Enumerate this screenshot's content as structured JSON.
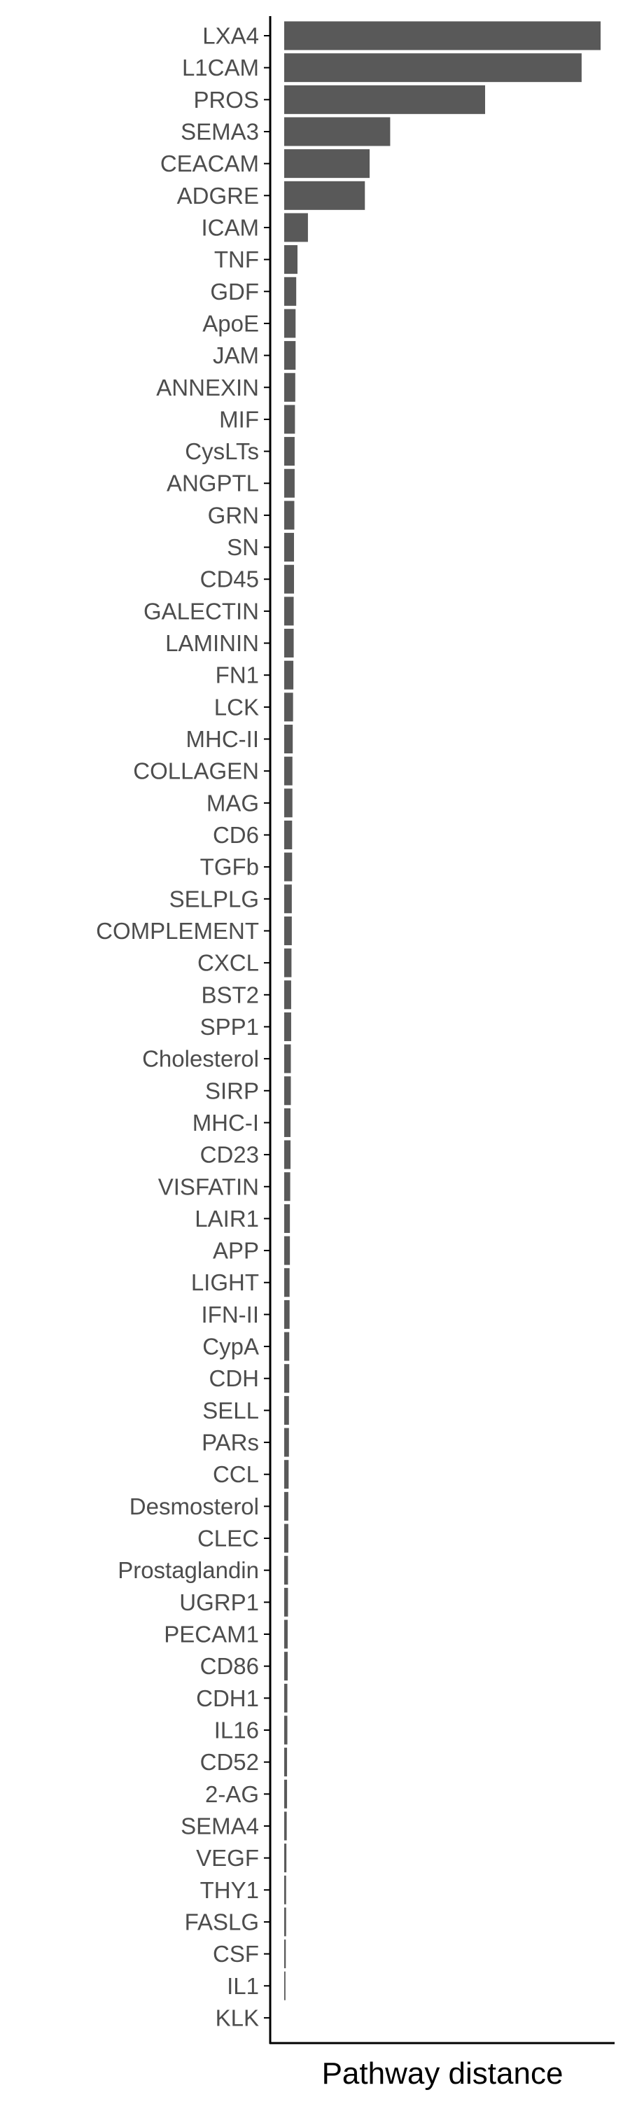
{
  "chart_data": {
    "type": "bar",
    "orientation": "horizontal",
    "xlabel": "Pathway distance",
    "ylabel": "",
    "categories": [
      "LXA4",
      "L1CAM",
      "PROS",
      "SEMA3",
      "CEACAM",
      "ADGRE",
      "ICAM",
      "TNF",
      "GDF",
      "ApoE",
      "JAM",
      "ANNEXIN",
      "MIF",
      "CysLTs",
      "ANGPTL",
      "GRN",
      "SN",
      "CD45",
      "GALECTIN",
      "LAMININ",
      "FN1",
      "LCK",
      "MHC-II",
      "COLLAGEN",
      "MAG",
      "CD6",
      "TGFb",
      "SELPLG",
      "COMPLEMENT",
      "CXCL",
      "BST2",
      "SPP1",
      "Cholesterol",
      "SIRP",
      "MHC-I",
      "CD23",
      "VISFATIN",
      "LAIR1",
      "APP",
      "LIGHT",
      "IFN-II",
      "CypA",
      "CDH",
      "SELL",
      "PARs",
      "CCL",
      "Desmosterol",
      "CLEC",
      "Prostaglandin",
      "UGRP1",
      "PECAM1",
      "CD86",
      "CDH1",
      "IL16",
      "CD52",
      "2-AG",
      "SEMA4",
      "VEGF",
      "THY1",
      "FASLG",
      "CSF",
      "IL1",
      "KLK"
    ],
    "values": [
      1.0,
      0.94,
      0.635,
      0.335,
      0.27,
      0.255,
      0.075,
      0.042,
      0.038,
      0.036,
      0.036,
      0.035,
      0.034,
      0.033,
      0.033,
      0.032,
      0.031,
      0.031,
      0.03,
      0.03,
      0.029,
      0.028,
      0.027,
      0.026,
      0.026,
      0.025,
      0.025,
      0.024,
      0.024,
      0.023,
      0.022,
      0.022,
      0.021,
      0.021,
      0.02,
      0.02,
      0.019,
      0.018,
      0.018,
      0.017,
      0.017,
      0.016,
      0.016,
      0.015,
      0.015,
      0.014,
      0.013,
      0.013,
      0.012,
      0.012,
      0.011,
      0.011,
      0.01,
      0.01,
      0.009,
      0.009,
      0.008,
      0.007,
      0.006,
      0.006,
      0.005,
      0.004,
      0.0
    ],
    "xlim": [
      0,
      1.0
    ],
    "grid": false,
    "legend": "none",
    "bar_color": "#595959",
    "axis_color": "#000000",
    "tick_label_color": "#4d4d4d"
  }
}
